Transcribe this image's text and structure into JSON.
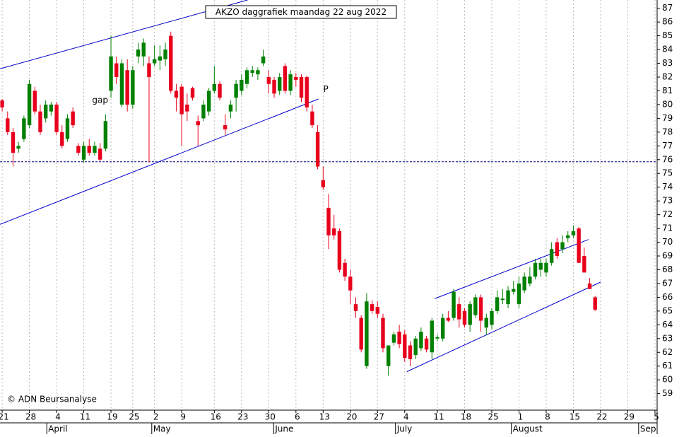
{
  "chart_data": {
    "type": "candlestick",
    "title": "AKZO daggrafiek maandag 22 aug 2022",
    "credit": "© ADN Beursanalyse",
    "up_color": "#008000",
    "down_color": "#e8001c",
    "open": [
      80.3,
      79,
      78,
      76.8,
      77.5,
      78.5,
      81,
      79.5,
      79,
      79.5,
      80,
      78,
      77.5,
      79.5,
      77,
      76,
      77,
      76.5,
      76.8,
      76.8,
      81,
      83,
      80,
      82.5,
      80,
      83.5,
      83.5,
      83,
      83,
      83.2,
      83.3,
      85,
      81,
      81.3,
      80,
      81.2,
      78.8,
      79,
      79.5,
      81,
      81.5,
      78.5,
      79.5,
      80.5,
      81,
      81.5,
      82.3,
      82.2,
      83,
      82,
      81.8,
      81,
      82.8,
      81,
      82,
      82,
      82,
      79.5,
      78,
      74.5,
      72.5,
      71,
      70.8,
      68.5,
      67.5,
      65.5,
      64.5,
      61,
      65.5,
      65.3,
      64.5,
      61,
      62.7,
      63.5,
      63.3,
      62.5,
      61.8,
      62.3,
      63,
      62,
      63,
      63,
      64.5,
      64.5,
      65.5,
      65,
      64,
      64.7,
      66,
      63.8,
      64,
      65,
      65.8,
      65.5,
      66.4,
      65.5,
      66.5,
      67,
      67.5,
      68,
      67.8,
      68.5,
      70,
      69.5,
      70.3,
      70.5,
      71,
      69,
      67,
      66
    ],
    "high": [
      80.4,
      79.5,
      78.3,
      77.3,
      79.2,
      81.8,
      81.3,
      80,
      80.3,
      80.2,
      80.2,
      78.5,
      79.3,
      79.8,
      77.2,
      77.3,
      77.5,
      77.3,
      77.2,
      79.3,
      85,
      83.5,
      83.3,
      83.3,
      82.8,
      84.5,
      84.8,
      83.5,
      84.3,
      84.3,
      84.5,
      85.3,
      81.5,
      81.5,
      80.8,
      81.3,
      79.2,
      80.3,
      81.2,
      82.8,
      81.7,
      79.3,
      80.3,
      81.8,
      82.2,
      82.7,
      82.8,
      82.7,
      84,
      82.5,
      82,
      82.3,
      83,
      82.5,
      82.3,
      82.2,
      82.1,
      80,
      78.5,
      75.5,
      73.5,
      72,
      71,
      68.8,
      68,
      66,
      64.7,
      66.3,
      65.8,
      65.7,
      64.8,
      62.5,
      63.5,
      64,
      63.6,
      62.8,
      63.2,
      63.8,
      63.2,
      64.5,
      63.3,
      64.8,
      65,
      66.6,
      66,
      65.2,
      65.7,
      66.2,
      66.2,
      64.8,
      65.2,
      66.5,
      66.6,
      66.8,
      67.2,
      67.5,
      67.8,
      68.2,
      68.8,
      68.8,
      68.8,
      70,
      70.3,
      70.5,
      70.8,
      71.2,
      71.1,
      69.6,
      67.4,
      66.1
    ],
    "low": [
      79.5,
      77.8,
      75.5,
      76.5,
      77.3,
      78.3,
      79.3,
      77.8,
      78.7,
      79.2,
      77.8,
      76.8,
      77.3,
      78.3,
      76.3,
      75.8,
      76.3,
      76.3,
      75.9,
      76.6,
      80.5,
      81.5,
      79.8,
      79.5,
      79.7,
      83,
      82.8,
      75.8,
      82.8,
      82.5,
      82.8,
      80.8,
      79.5,
      77,
      78.8,
      80.3,
      77,
      78.8,
      79.2,
      80.8,
      80.3,
      77.8,
      79,
      79.5,
      80.7,
      81.2,
      82,
      81.8,
      82.8,
      80.8,
      80.5,
      80.7,
      80.8,
      80.7,
      81.3,
      80.2,
      79.5,
      78.3,
      75.3,
      73.8,
      69.5,
      70.2,
      67.8,
      67.2,
      65.5,
      64.5,
      62,
      60.8,
      64.8,
      64.5,
      62,
      60.3,
      62.5,
      62.3,
      61.3,
      61,
      61.5,
      62.1,
      62,
      61.5,
      62.8,
      62.8,
      64.2,
      64.3,
      63.8,
      63.8,
      63.5,
      64.5,
      63.5,
      63.3,
      63.7,
      64.8,
      65.5,
      65.2,
      66.2,
      65.2,
      66.3,
      66.8,
      67.3,
      67.5,
      67.5,
      68.3,
      68.8,
      69.2,
      70,
      70.3,
      68.5,
      67.8,
      66.6,
      65
    ],
    "close": [
      79.8,
      78,
      76.5,
      77,
      79,
      81.5,
      79.5,
      78,
      80,
      80,
      78,
      77,
      79,
      78.5,
      76.5,
      77,
      76.5,
      77,
      76,
      78.8,
      83.5,
      82,
      83,
      80,
      82.5,
      84,
      84.5,
      82,
      83.3,
      83.5,
      84,
      81,
      80.5,
      79.3,
      79.5,
      80.5,
      78.5,
      80,
      81,
      81.5,
      80.5,
      78.2,
      80,
      81.5,
      81.8,
      82.5,
      82.5,
      82.5,
      83.5,
      81.5,
      80.8,
      82,
      81,
      82.2,
      81.8,
      80.5,
      79.8,
      78.5,
      75.5,
      74,
      70.5,
      70.5,
      68,
      67.5,
      66.5,
      65,
      62.2,
      65.7,
      65,
      64.8,
      62.3,
      62.5,
      63.3,
      62.6,
      61.6,
      61.5,
      63,
      63.5,
      62.2,
      64.3,
      63.1,
      64.5,
      64.3,
      66.4,
      64.4,
      64,
      65.5,
      66,
      64.3,
      64.5,
      65,
      66,
      65.9,
      66.5,
      66.6,
      67,
      67.5,
      67.5,
      68.5,
      68.5,
      68.5,
      69.5,
      69,
      70,
      70.5,
      70.8,
      68.5,
      67.8,
      66.6,
      65.1
    ],
    "trend_lines": [
      {
        "x": [
          -0.4,
          45.1
        ],
        "y": [
          82.6,
          87.6
        ]
      },
      {
        "x": [
          -0.4,
          58.1
        ],
        "y": [
          71.3,
          80.4
        ]
      },
      {
        "x": [
          74.4,
          110
        ],
        "y": [
          60.6,
          67.1
        ]
      },
      {
        "x": [
          79.5,
          107.8
        ],
        "y": [
          65.9,
          70.2
        ]
      }
    ],
    "hlines": [
      75.85
    ],
    "annotations": [
      {
        "text": "gap",
        "x": 18,
        "y": 80.3,
        "color": "#aaaaaa"
      },
      {
        "text": "P",
        "x": 59.5,
        "y": 81.1,
        "color": "#0000cc"
      }
    ],
    "xlim": [
      -0.4,
      120.4
    ],
    "xticks": [
      {
        "value": 0,
        "label": "21"
      },
      {
        "value": 5,
        "label": "28"
      },
      {
        "value": 10,
        "label": "4"
      },
      {
        "value": 15,
        "label": "11"
      },
      {
        "value": 20,
        "label": "19"
      },
      {
        "value": 24,
        "label": "25"
      },
      {
        "value": 28,
        "label": "2"
      },
      {
        "value": 33,
        "label": "9"
      },
      {
        "value": 39,
        "label": "16"
      },
      {
        "value": 44,
        "label": "23"
      },
      {
        "value": 49,
        "label": "30"
      },
      {
        "value": 54,
        "label": "6"
      },
      {
        "value": 59,
        "label": "13"
      },
      {
        "value": 64,
        "label": "20"
      },
      {
        "value": 69,
        "label": "27"
      },
      {
        "value": 74,
        "label": "4"
      },
      {
        "value": 80,
        "label": "11"
      },
      {
        "value": 85,
        "label": "18"
      },
      {
        "value": 90,
        "label": "25"
      },
      {
        "value": 95,
        "label": "1"
      },
      {
        "value": 100,
        "label": "8"
      },
      {
        "value": 105,
        "label": "15"
      },
      {
        "value": 110,
        "label": "22"
      },
      {
        "value": 115,
        "label": "29"
      },
      {
        "value": 120,
        "label": "5"
      }
    ],
    "month_ticks": [
      {
        "value": 8.2,
        "label": "April"
      },
      {
        "value": 27.5,
        "label": "May"
      },
      {
        "value": 49.9,
        "label": "June"
      },
      {
        "value": 72.3,
        "label": "July"
      },
      {
        "value": 93.6,
        "label": "August"
      },
      {
        "value": 117,
        "label": "Sep"
      }
    ],
    "ylim": [
      57.8,
      87.6
    ],
    "yticks": [
      59,
      60,
      61,
      62,
      63,
      64,
      65,
      66,
      67,
      68,
      69,
      70,
      71,
      72,
      73,
      74,
      75,
      76,
      77,
      78,
      79,
      80,
      81,
      82,
      83,
      84,
      85,
      86,
      87
    ],
    "grid": true
  }
}
